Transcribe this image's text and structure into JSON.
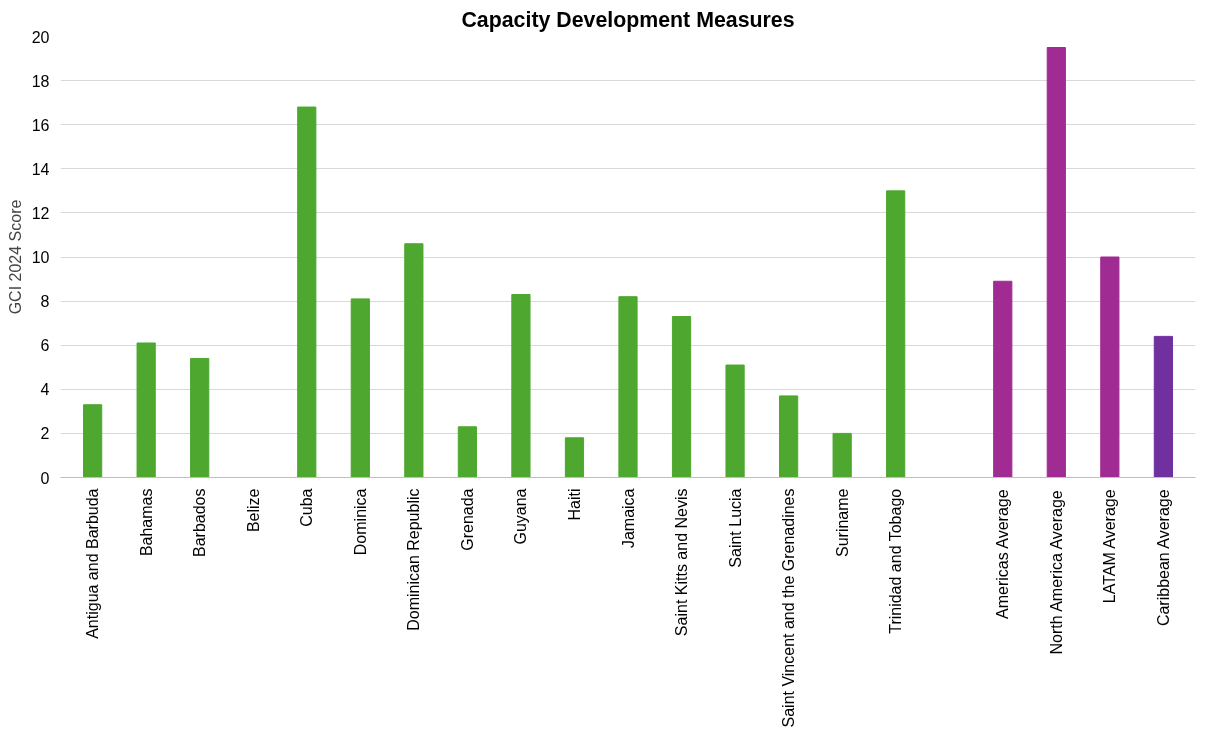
{
  "chart_data": {
    "type": "bar",
    "title": "Capacity Development Measures",
    "ylabel": "GCI 2024 Score",
    "categories": [
      "Antigua and Barbuda",
      "Bahamas",
      "Barbados",
      "Belize",
      "Cuba",
      "Dominica",
      "Dominican Republic",
      "Grenada",
      "Guyana",
      "Haiti",
      "Jamaica",
      "Saint Kitts and Nevis",
      "Saint Lucia",
      "Saint Vincent and the Grenadines",
      "Suriname",
      "Trinidad and Tobago",
      null,
      "Americas Average",
      "North America Average",
      "LATAM Average",
      "Caribbean Average"
    ],
    "values": [
      3.3,
      6.1,
      5.4,
      0,
      16.8,
      8.1,
      10.6,
      2.3,
      8.3,
      1.8,
      8.2,
      7.3,
      5.1,
      3.7,
      2.0,
      13.0,
      null,
      8.9,
      19.5,
      10.0,
      6.4
    ],
    "colors": [
      "#4ea72e",
      "#4ea72e",
      "#4ea72e",
      "#4ea72e",
      "#4ea72e",
      "#4ea72e",
      "#4ea72e",
      "#4ea72e",
      "#4ea72e",
      "#4ea72e",
      "#4ea72e",
      "#4ea72e",
      "#4ea72e",
      "#4ea72e",
      "#4ea72e",
      "#4ea72e",
      "#4ea72e",
      "#a02b93",
      "#a02b93",
      "#a02b93",
      "#7030a0"
    ],
    "ylim": [
      0,
      20
    ],
    "yticks": [
      0,
      2,
      4,
      6,
      8,
      10,
      12,
      14,
      16,
      18,
      20
    ],
    "grid": "y"
  }
}
